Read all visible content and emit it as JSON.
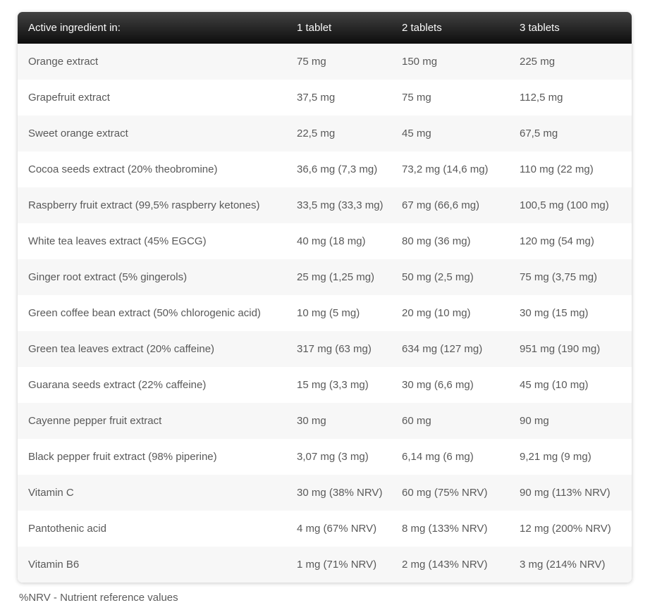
{
  "table": {
    "header": {
      "col1": "Active ingredient in:",
      "col2": "1 tablet",
      "col3": "2 tablets",
      "col4": "3 tablets"
    },
    "rows": [
      {
        "ingredient": "Orange extract",
        "t1": "75 mg",
        "t2": "150 mg",
        "t3": "225 mg"
      },
      {
        "ingredient": "Grapefruit extract",
        "t1": "37,5 mg",
        "t2": "75 mg",
        "t3": "112,5 mg"
      },
      {
        "ingredient": "Sweet orange extract",
        "t1": "22,5 mg",
        "t2": "45 mg",
        "t3": "67,5 mg"
      },
      {
        "ingredient": "Cocoa seeds extract (20% theobromine)",
        "t1": "36,6 mg (7,3 mg)",
        "t2": "73,2 mg (14,6 mg)",
        "t3": "110 mg (22 mg)"
      },
      {
        "ingredient": "Raspberry fruit extract (99,5% raspberry ketones)",
        "t1": "33,5 mg (33,3 mg)",
        "t2": "67 mg (66,6 mg)",
        "t3": "100,5 mg (100 mg)"
      },
      {
        "ingredient": "White tea leaves extract (45% EGCG)",
        "t1": "40 mg (18 mg)",
        "t2": "80 mg (36 mg)",
        "t3": "120 mg (54 mg)"
      },
      {
        "ingredient": "Ginger root extract (5% gingerols)",
        "t1": "25 mg (1,25 mg)",
        "t2": "50 mg (2,5 mg)",
        "t3": "75 mg (3,75 mg)"
      },
      {
        "ingredient": "Green coffee bean extract (50% chlorogenic acid)",
        "t1": "10 mg (5 mg)",
        "t2": "20 mg (10 mg)",
        "t3": "30 mg (15 mg)"
      },
      {
        "ingredient": "Green tea leaves extract (20% caffeine)",
        "t1": "317 mg (63 mg)",
        "t2": "634 mg (127 mg)",
        "t3": "951 mg (190 mg)"
      },
      {
        "ingredient": "Guarana seeds extract (22% caffeine)",
        "t1": "15 mg (3,3 mg)",
        "t2": "30 mg (6,6 mg)",
        "t3": "45 mg (10 mg)"
      },
      {
        "ingredient": "Cayenne pepper fruit extract",
        "t1": "30 mg",
        "t2": "60 mg",
        "t3": "90 mg"
      },
      {
        "ingredient": "Black pepper fruit extract (98% piperine)",
        "t1": "3,07 mg (3 mg)",
        "t2": "6,14 mg (6 mg)",
        "t3": "9,21 mg (9 mg)"
      },
      {
        "ingredient": "Vitamin C",
        "t1": "30 mg (38% NRV)",
        "t2": "60 mg (75% NRV)",
        "t3": "90 mg (113% NRV)"
      },
      {
        "ingredient": "Pantothenic acid",
        "t1": "4 mg (67% NRV)",
        "t2": "8 mg (133% NRV)",
        "t3": "12 mg (200% NRV)"
      },
      {
        "ingredient": "Vitamin B6",
        "t1": "1 mg (71% NRV)",
        "t2": "2 mg (143% NRV)",
        "t3": "3 mg (214% NRV)"
      }
    ]
  },
  "footer": {
    "note": "%NRV - Nutrient reference values"
  },
  "colors": {
    "header_gradient_top": "#424242",
    "header_gradient_bottom": "#0d0d0d",
    "header_text": "#fafafa",
    "row_stripe": "#f7f7f7",
    "row_plain": "#ffffff",
    "body_text": "#595959"
  },
  "chart_data": {
    "type": "table",
    "title": "Active ingredient in:",
    "columns": [
      "Active ingredient in:",
      "1 tablet",
      "2 tablets",
      "3 tablets"
    ],
    "rows": [
      [
        "Orange extract",
        "75 mg",
        "150 mg",
        "225 mg"
      ],
      [
        "Grapefruit extract",
        "37,5 mg",
        "75 mg",
        "112,5 mg"
      ],
      [
        "Sweet orange extract",
        "22,5 mg",
        "45 mg",
        "67,5 mg"
      ],
      [
        "Cocoa seeds extract (20% theobromine)",
        "36,6 mg (7,3 mg)",
        "73,2 mg (14,6 mg)",
        "110 mg (22 mg)"
      ],
      [
        "Raspberry fruit extract (99,5% raspberry ketones)",
        "33,5 mg (33,3 mg)",
        "67 mg (66,6 mg)",
        "100,5 mg (100 mg)"
      ],
      [
        "White tea leaves extract (45% EGCG)",
        "40 mg (18 mg)",
        "80 mg (36 mg)",
        "120 mg (54 mg)"
      ],
      [
        "Ginger root extract (5% gingerols)",
        "25 mg (1,25 mg)",
        "50 mg (2,5 mg)",
        "75 mg (3,75 mg)"
      ],
      [
        "Green coffee bean extract (50% chlorogenic acid)",
        "10 mg (5 mg)",
        "20 mg (10 mg)",
        "30 mg (15 mg)"
      ],
      [
        "Green tea leaves extract (20% caffeine)",
        "317 mg (63 mg)",
        "634 mg (127 mg)",
        "951 mg (190 mg)"
      ],
      [
        "Guarana seeds extract (22% caffeine)",
        "15 mg (3,3 mg)",
        "30 mg (6,6 mg)",
        "45 mg (10 mg)"
      ],
      [
        "Cayenne pepper fruit extract",
        "30 mg",
        "60 mg",
        "90 mg"
      ],
      [
        "Black pepper fruit extract (98% piperine)",
        "3,07 mg (3 mg)",
        "6,14 mg (6 mg)",
        "9,21 mg (9 mg)"
      ],
      [
        "Vitamin C",
        "30 mg (38% NRV)",
        "60 mg (75% NRV)",
        "90 mg (113% NRV)"
      ],
      [
        "Pantothenic acid",
        "4 mg (67% NRV)",
        "8 mg (133% NRV)",
        "12 mg (200% NRV)"
      ],
      [
        "Vitamin B6",
        "1 mg (71% NRV)",
        "2 mg (143% NRV)",
        "3 mg (214% NRV)"
      ]
    ],
    "notes": "%NRV - Nutrient reference values"
  }
}
